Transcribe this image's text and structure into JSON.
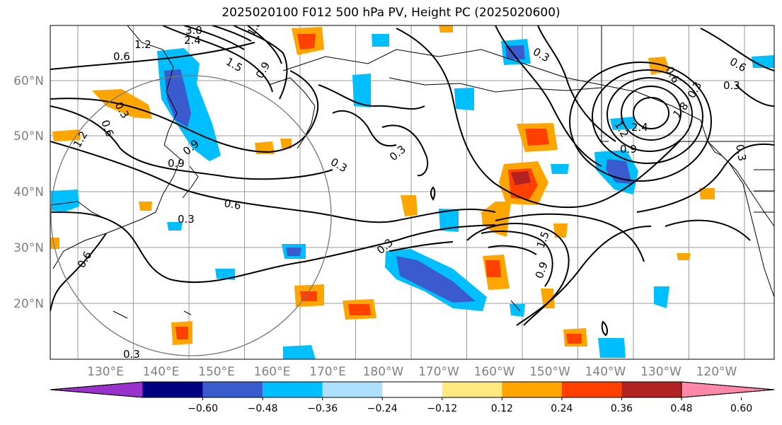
{
  "title": "2025020100 F012 500 hPa PV, Height PC (2025020600)",
  "map": {
    "lon_labels": [
      "130°E",
      "140°E",
      "150°E",
      "160°E",
      "170°E",
      "180°W",
      "170°W",
      "160°W",
      "150°W",
      "140°W",
      "130°W",
      "120°W"
    ],
    "lat_labels": [
      "60°N",
      "50°N",
      "40°N",
      "30°N",
      "20°N"
    ],
    "fill_colors": {
      "purple": "#9932CC",
      "navy": "#000080",
      "blue": "#3A5BCD",
      "sky": "#00BFFF",
      "lightblue": "#ADDFFF",
      "white": "#FFFFFF",
      "yellow": "#FFEA80",
      "orange": "#FFA500",
      "redorange": "#FF4000",
      "darkred": "#B22222",
      "pink": "#FF88AA"
    },
    "contour_labels": [
      "3.0",
      "2.4",
      "1.8",
      "1.2",
      "0.6",
      "1.5",
      "0.9",
      "0.3",
      "0.6",
      "0.9",
      "1.2",
      "0.9",
      "0.3",
      "0.6",
      "0.3",
      "0.3",
      "0.6",
      "0.3",
      "0.3",
      "0.3",
      "0.9",
      "1.5",
      "0.9",
      "1.2",
      "2.4",
      "1.8",
      "0.6",
      "0.3",
      "0.3",
      "0.6",
      "0.3"
    ]
  },
  "colorbar": {
    "colors": [
      "#9932CC",
      "#000080",
      "#3A5BCD",
      "#00BFFF",
      "#ADDFFF",
      "#FFFFFF",
      "#FFEA80",
      "#FFA500",
      "#FF4000",
      "#B22222",
      "#FF88AA"
    ],
    "labels": [
      "−0.60",
      "−0.48",
      "−0.36",
      "−0.24",
      "−0.12",
      "0.12",
      "0.24",
      "0.36",
      "0.48",
      "0.60"
    ]
  }
}
